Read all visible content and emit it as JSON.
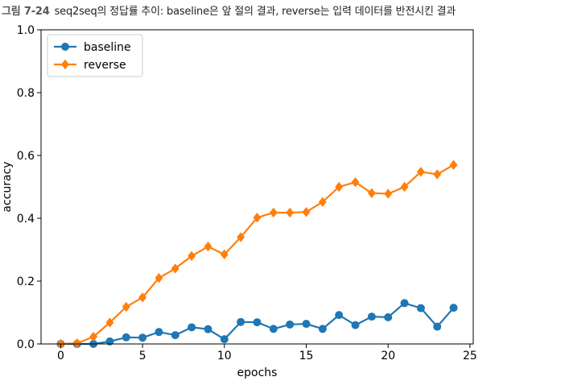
{
  "caption": {
    "figure_number": "그림 7-24",
    "text": "seq2seq의 정답률 추이: baseline은 앞 절의 결과, reverse는 입력 데이터를 반전시킨 결과"
  },
  "chart_data": {
    "type": "line",
    "xlabel": "epochs",
    "ylabel": "accuracy",
    "xlim": [
      -1.2,
      25.2
    ],
    "ylim": [
      0,
      1.0
    ],
    "xticks": [
      0,
      5,
      10,
      15,
      20,
      25
    ],
    "yticks": [
      0.0,
      0.2,
      0.4,
      0.6,
      0.8,
      1.0
    ],
    "xtick_labels": [
      "0",
      "5",
      "10",
      "15",
      "20",
      "25"
    ],
    "ytick_labels": [
      "0.0",
      "0.2",
      "0.4",
      "0.6",
      "0.8",
      "1.0"
    ],
    "grid": false,
    "legend_position": "upper-left",
    "x": [
      0,
      1,
      2,
      3,
      4,
      5,
      6,
      7,
      8,
      9,
      10,
      11,
      12,
      13,
      14,
      15,
      16,
      17,
      18,
      19,
      20,
      21,
      22,
      23,
      24
    ],
    "series": [
      {
        "name": "baseline",
        "color": "#1f77b4",
        "marker": "circle",
        "values": [
          0.0,
          0.0,
          0.0,
          0.008,
          0.021,
          0.02,
          0.038,
          0.028,
          0.053,
          0.047,
          0.015,
          0.07,
          0.069,
          0.048,
          0.062,
          0.064,
          0.048,
          0.092,
          0.06,
          0.087,
          0.085,
          0.13,
          0.114,
          0.055,
          0.115
        ]
      },
      {
        "name": "reverse",
        "color": "#ff7f0e",
        "marker": "diamond",
        "values": [
          0.0,
          0.002,
          0.023,
          0.068,
          0.118,
          0.148,
          0.21,
          0.24,
          0.28,
          0.31,
          0.285,
          0.34,
          0.402,
          0.418,
          0.418,
          0.42,
          0.452,
          0.5,
          0.515,
          0.48,
          0.478,
          0.5,
          0.548,
          0.54,
          0.57
        ]
      }
    ]
  }
}
